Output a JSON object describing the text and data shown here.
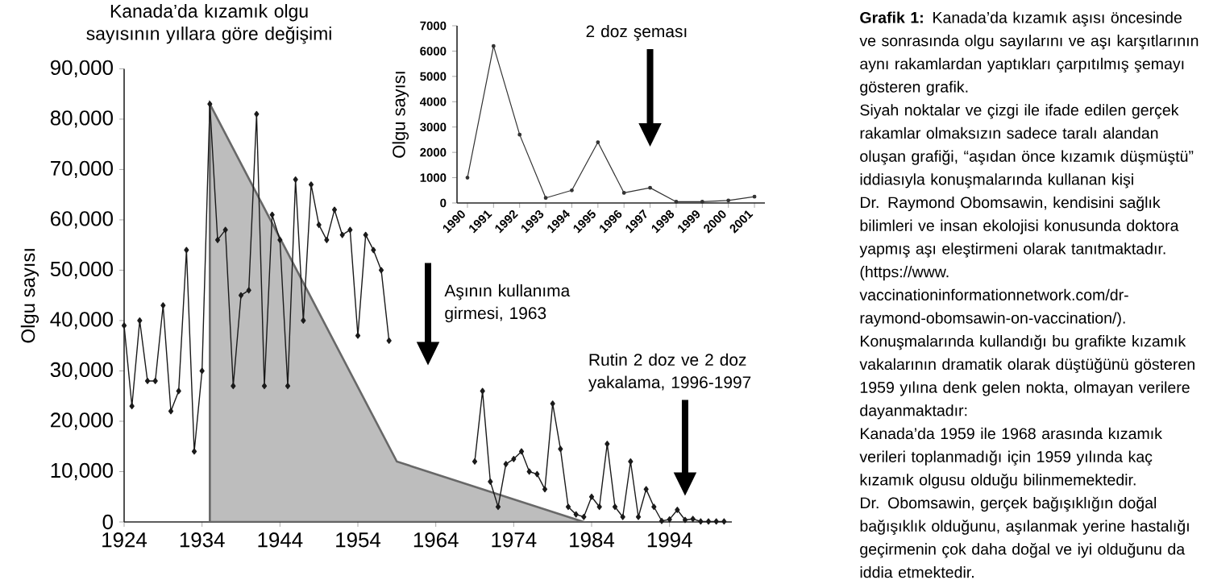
{
  "chart_data": [
    {
      "type": "line",
      "title": "Kanada’da kızamık olgu sayısının yıllara göre değişimi",
      "ylabel": "Olgu sayısı",
      "xlim": [
        1924,
        2002
      ],
      "ylim": [
        0,
        90000
      ],
      "xticks": [
        1924,
        1934,
        1944,
        1954,
        1964,
        1974,
        1984,
        1994
      ],
      "yticks": [
        0,
        {
          "value": 10000,
          "label": "10,000"
        },
        {
          "value": 20000,
          "label": "20,000"
        },
        {
          "value": 30000,
          "label": "30,000"
        },
        {
          "value": 40000,
          "label": "40,000"
        },
        {
          "value": 50000,
          "label": "50,000"
        },
        {
          "value": 60000,
          "label": "60,000"
        },
        {
          "value": 70000,
          "label": "70,000"
        },
        {
          "value": 80000,
          "label": "80,000"
        },
        {
          "value": 90000,
          "label": "90,000"
        }
      ],
      "series": [
        {
          "type": "area",
          "color": "#bdbdbd",
          "x": [
            1935,
            1959,
            1983
          ],
          "values": [
            83000,
            12000,
            0
          ]
        },
        {
          "type": "line",
          "color": "#1a1a1a",
          "marker": "diamond",
          "x": [
            1924,
            1925,
            1926,
            1927,
            1928,
            1929,
            1930,
            1931,
            1932,
            1933,
            1934,
            1935,
            1936,
            1937,
            1938,
            1939,
            1940,
            1941,
            1942,
            1943,
            1944,
            1945,
            1946,
            1947,
            1948,
            1949,
            1950,
            1951,
            1952,
            1953,
            1954,
            1955,
            1956,
            1957,
            1958,
            1959,
            1960,
            1961,
            1962,
            1963,
            1964,
            1965,
            1966,
            1967,
            1968,
            1969,
            1970,
            1971,
            1972,
            1973,
            1974,
            1975,
            1976,
            1977,
            1978,
            1979,
            1980,
            1981,
            1982,
            1983,
            1984,
            1985,
            1986,
            1987,
            1988,
            1989,
            1990,
            1991,
            1992,
            1993,
            1994,
            1995,
            1996,
            1997,
            1998,
            1999,
            2000,
            2001
          ],
          "values": [
            39000,
            23000,
            40000,
            28000,
            28000,
            43000,
            22000,
            26000,
            54000,
            14000,
            30000,
            83000,
            56000,
            58000,
            27000,
            45000,
            46000,
            81000,
            27000,
            61000,
            56000,
            27000,
            68000,
            40000,
            67000,
            59000,
            56000,
            62000,
            57000,
            58000,
            37000,
            57000,
            54000,
            50000,
            36000,
            null,
            null,
            null,
            null,
            null,
            null,
            null,
            null,
            null,
            null,
            12000,
            26000,
            8000,
            3000,
            11500,
            12500,
            14000,
            10000,
            9500,
            6500,
            23500,
            14500,
            3000,
            1500,
            1000,
            5000,
            3000,
            15500,
            3000,
            1000,
            12000,
            1000,
            6500,
            3000,
            200,
            500,
            2400,
            400,
            600,
            100,
            100,
            100,
            100
          ]
        }
      ],
      "annotations": [
        "Aşının kullanıma girmesi, 1963",
        "Rutin 2 doz ve 2 doz yakalama, 1996-1997",
        "**Grafik 1:** Kanada’da kızamık aşısı öncesinde ve sonrasında olgu sayılarını ve aşı karşıtlarının aynı rakamlardan yaptıkları çarpıtılmış şemayı gösteren grafik.",
        "Siyah noktalar ve çizgi ile ifade edilen gerçek rakamlar olmaksızın sadece taralı alandan oluşan grafiği, “aşıdan önce kızamık düşmüştü” iddiasıyla konuşmalarında kullanan kişi Dr. Raymond Obomsawin, kendisini sağlık bilimleri ve insan ekolojisi konusunda doktora yapmış aşı eleştirmeni olarak tanıtmaktadır. (https://www.",
        "vaccinationinformationnetwork.com/dr-",
        "raymond-obomsawin-on-vaccination/).",
        "Konuşmalarında kullandığı bu grafikte kızamık vakalarının dramatik olarak düştüğünü gösteren 1959 yılına denk gelen nokta, olmayan verilere dayanmaktadır:",
        "Kanada’da 1959 ile 1968 arasında kızamık verileri toplanmadığı için 1959 yılında kaç kızamık olgusu olduğu bilinmemektedir.",
        "Dr. Obomsawin, gerçek bağışıklığın doğal bağışıklık olduğunu, aşılanmak yerine hastalığı geçirmenin çok daha doğal ve iyi olduğunu da iddia etmektedir."
      ]
    },
    {
      "type": "line",
      "ylabel": "Olgu sayısı",
      "x": [
        1990,
        1991,
        1992,
        1993,
        1994,
        1995,
        1996,
        1997,
        1998,
        1999,
        2000,
        2001
      ],
      "xlim": [
        1989.6,
        2001.4
      ],
      "ylim": [
        0,
        7000
      ],
      "xticks": [
        1990,
        1991,
        1992,
        1993,
        1994,
        1995,
        1996,
        1997,
        1998,
        1999,
        2000,
        2001
      ],
      "yticks": [
        0,
        1000,
        2000,
        3000,
        4000,
        5000,
        6000,
        7000
      ],
      "marker": "circle",
      "series": [
        {
          "color": "#333333",
          "values": [
            1000,
            6200,
            2700,
            200,
            500,
            2400,
            400,
            600,
            50,
            50,
            100,
            250
          ]
        }
      ],
      "annotations": [
        "2 doz şeması"
      ]
    }
  ]
}
